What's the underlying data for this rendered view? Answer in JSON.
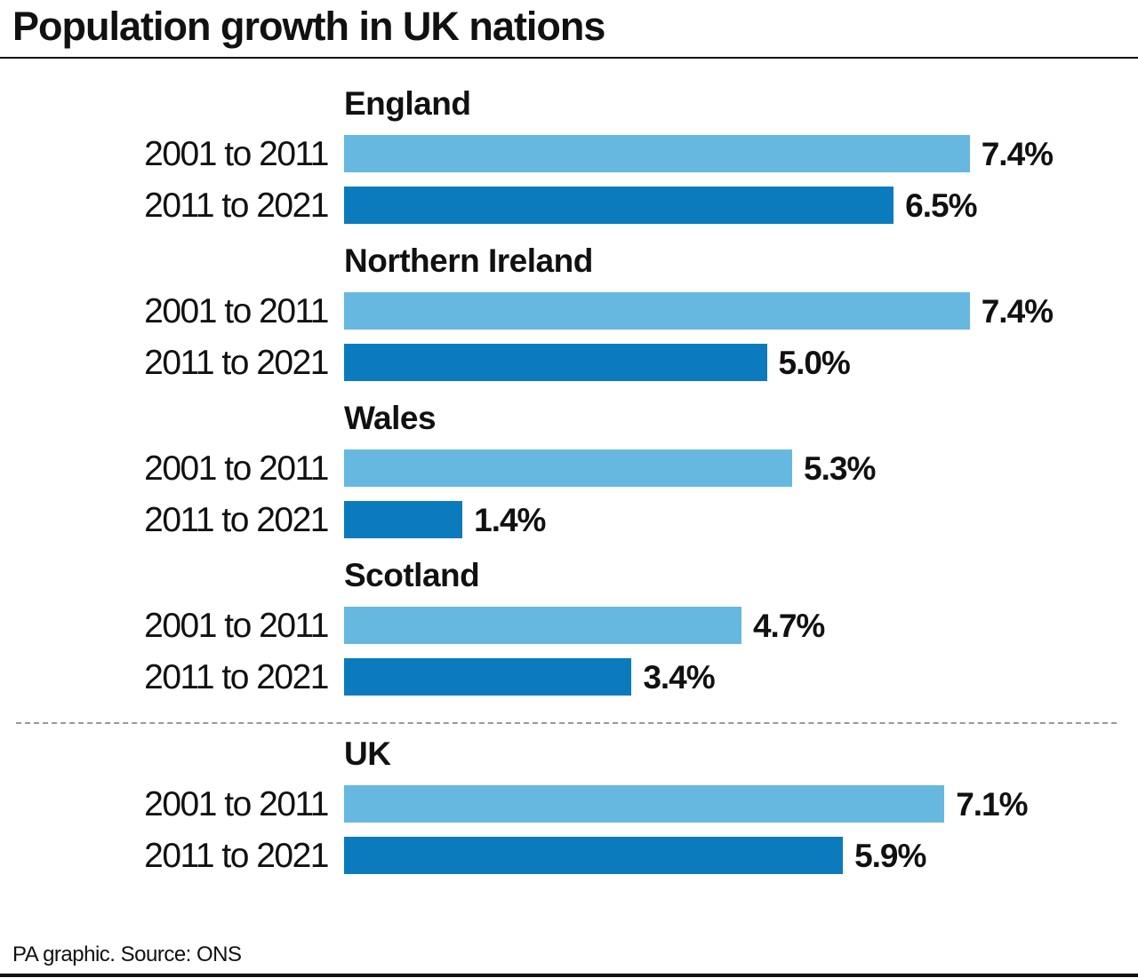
{
  "title": "Population growth in UK nations",
  "source": "PA graphic. Source: ONS",
  "chart_data": {
    "type": "bar",
    "orientation": "horizontal",
    "title": "Population growth in UK nations",
    "unit": "%",
    "periods": [
      "2001 to 2011",
      "2011 to 2021"
    ],
    "colors": {
      "2001 to 2011": "#66b8e0",
      "2011 to 2021": "#0b7bbd"
    },
    "groups": [
      {
        "name": "England",
        "values": [
          7.4,
          6.5
        ],
        "labels": [
          "7.4%",
          "6.5%"
        ]
      },
      {
        "name": "Northern Ireland",
        "values": [
          7.4,
          5.0
        ],
        "labels": [
          "7.4%",
          "5.0%"
        ]
      },
      {
        "name": "Wales",
        "values": [
          5.3,
          1.4
        ],
        "labels": [
          "5.3%",
          "1.4%"
        ]
      },
      {
        "name": "Scotland",
        "values": [
          4.7,
          3.4
        ],
        "labels": [
          "4.7%",
          "3.4%"
        ]
      },
      {
        "name": "UK",
        "values": [
          7.1,
          5.9
        ],
        "labels": [
          "7.1%",
          "5.9%"
        ]
      }
    ],
    "separator_before": "UK",
    "grid": false
  }
}
